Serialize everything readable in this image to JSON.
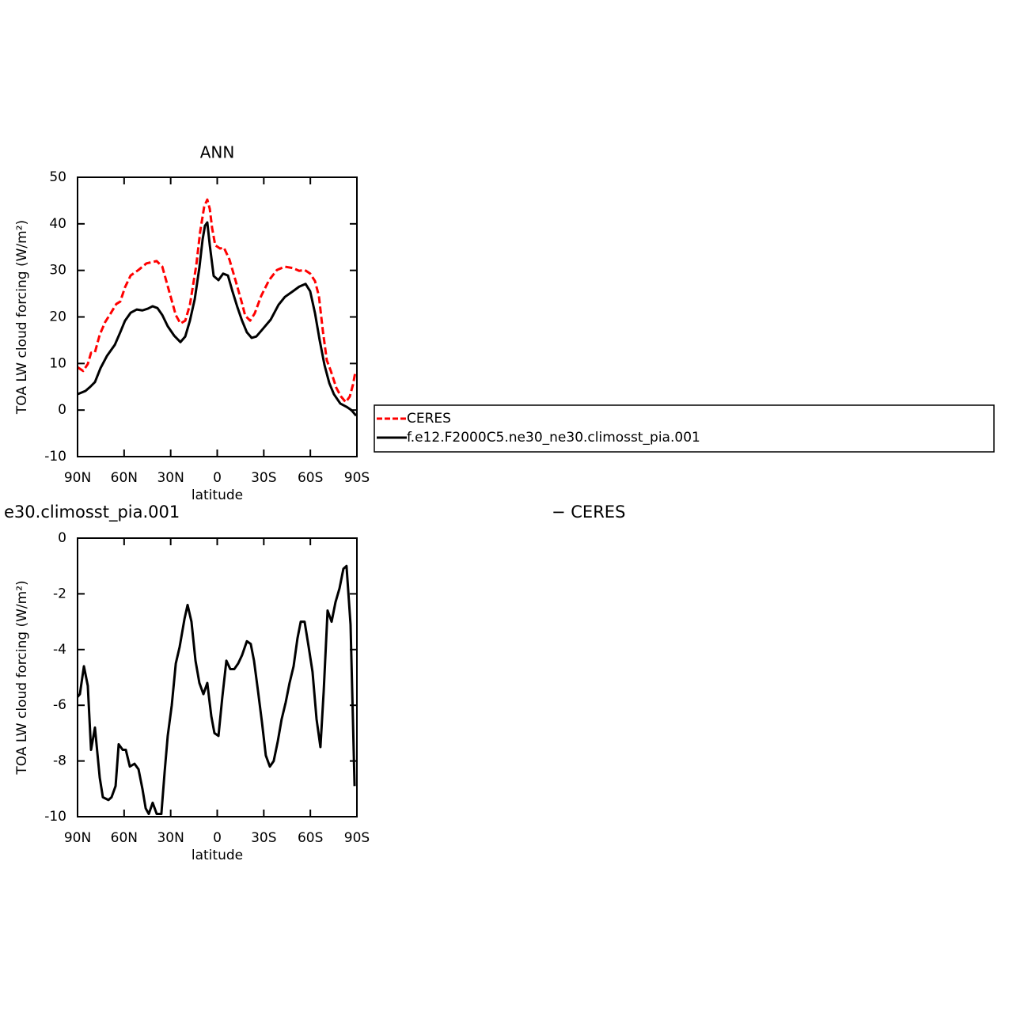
{
  "chart_data": [
    {
      "type": "line",
      "title": "ANN",
      "xlabel": "latitude",
      "ylabel": "TOA LW cloud forcing (W/m²)",
      "xlim": [
        90,
        -90
      ],
      "xticks": [
        {
          "value": 90,
          "label": "90N"
        },
        {
          "value": 60,
          "label": "60N"
        },
        {
          "value": 30,
          "label": "30N"
        },
        0,
        {
          "value": -30,
          "label": "30S"
        },
        {
          "value": -60,
          "label": "60S"
        },
        {
          "value": -90,
          "label": "90S"
        }
      ],
      "ylim": [
        -10,
        50
      ],
      "yticks": [
        -10,
        0,
        10,
        20,
        30,
        40,
        50
      ],
      "legend": "right",
      "series": [
        {
          "name": "CERES",
          "color": "#ff0000",
          "dash": true,
          "x": [
            90,
            86.4,
            83.4,
            81.3,
            78.8,
            75.7,
            72.2,
            68.6,
            65,
            62.5,
            59.4,
            55.8,
            50.7,
            45.6,
            39,
            35.4,
            30.3,
            26.7,
            23.7,
            20.6,
            17.6,
            13.5,
            11,
            8.4,
            6.4,
            4.8,
            3.3,
            1.3,
            -1.8,
            -4.3,
            -7.9,
            -11.9,
            -15.5,
            -18,
            -21.2,
            -24.2,
            -28.3,
            -33.4,
            -38.5,
            -43.6,
            -48.7,
            -52.8,
            -56.3,
            -59.9,
            -63,
            -65.5,
            -68.1,
            -70.6,
            -73.2,
            -76.7,
            -79.8,
            -82.8,
            -85.4,
            -87.5,
            -89
          ],
          "values": [
            9.2,
            8.4,
            9.9,
            12.3,
            12.4,
            16.2,
            18.9,
            20.8,
            22.8,
            23.3,
            26.4,
            28.9,
            30.1,
            31.5,
            32.0,
            30.8,
            24.7,
            20.4,
            18.6,
            19.2,
            22.6,
            31.1,
            38.3,
            43.7,
            45.2,
            43.2,
            39.1,
            35.4,
            34.7,
            34.9,
            32.3,
            27.7,
            23.5,
            20.3,
            19.2,
            20.8,
            24.5,
            27.9,
            30.1,
            30.8,
            30.5,
            29.9,
            30.1,
            29.3,
            27.7,
            24.5,
            16.9,
            10.7,
            8.4,
            4.8,
            2.9,
            1.7,
            2.9,
            5.5,
            8.2
          ]
        },
        {
          "name": "f.e12.F2000C5.ne30_ne30.climosst_pia.001",
          "color": "#000000",
          "dash": false,
          "x": [
            90,
            84.9,
            81.8,
            78.8,
            75.2,
            71.1,
            66,
            62.5,
            59.4,
            55.8,
            51.8,
            48.2,
            44.6,
            41.6,
            38.5,
            35.4,
            31.9,
            27.8,
            23.7,
            20.6,
            17.6,
            14.5,
            11.5,
            9.4,
            7.9,
            6.4,
            4.8,
            2.3,
            -0.8,
            -3.8,
            -6.9,
            -9.9,
            -13,
            -16,
            -19.1,
            -22.2,
            -25.2,
            -29.3,
            -34.4,
            -39.5,
            -43.6,
            -48.7,
            -52.8,
            -56.9,
            -59.9,
            -63,
            -66,
            -69.1,
            -72.2,
            -75.2,
            -79.3,
            -83.3,
            -86.4,
            -89.5
          ],
          "values": [
            3.4,
            4.1,
            5.0,
            6.0,
            9.0,
            11.6,
            14.0,
            16.7,
            19.2,
            20.9,
            21.6,
            21.4,
            21.8,
            22.3,
            21.9,
            20.4,
            18.0,
            16.0,
            14.6,
            15.8,
            19.2,
            23.8,
            30.6,
            36.7,
            39.6,
            40.3,
            35.4,
            28.8,
            27.9,
            29.3,
            28.9,
            25.4,
            22.1,
            19.2,
            16.7,
            15.5,
            15.8,
            17.4,
            19.4,
            22.6,
            24.3,
            25.5,
            26.5,
            27.1,
            25.5,
            20.8,
            15.0,
            9.7,
            5.8,
            3.4,
            1.4,
            0.7,
            0.0,
            -1.2
          ]
        }
      ]
    },
    {
      "type": "line",
      "title": [
        "e30.climosst_pia.001",
        "− CERES"
      ],
      "xlabel": "latitude",
      "ylabel": "TOA LW cloud forcing (W/m²)",
      "xlim": [
        90,
        -90
      ],
      "xticks": [
        {
          "value": 90,
          "label": "90N"
        },
        {
          "value": 60,
          "label": "60N"
        },
        {
          "value": 30,
          "label": "30N"
        },
        0,
        {
          "value": -30,
          "label": "30S"
        },
        {
          "value": -60,
          "label": "60S"
        },
        {
          "value": -90,
          "label": "90S"
        }
      ],
      "ylim": [
        -10,
        0
      ],
      "yticks": [
        -10,
        -8,
        -6,
        -4,
        -2,
        0
      ],
      "series": [
        {
          "color": "#000000",
          "dash": false,
          "x": [
            90,
            88.5,
            85.9,
            83.4,
            81.3,
            78.8,
            75.7,
            73.7,
            70.1,
            68.1,
            65.5,
            63.5,
            60.9,
            58.9,
            56.3,
            53.3,
            50.7,
            48.2,
            46.1,
            44.1,
            41.6,
            39,
            36,
            33.9,
            31.9,
            29.3,
            26.7,
            24.2,
            21.1,
            19.1,
            16.6,
            14,
            11.5,
            8.9,
            6.4,
            3.8,
            1.8,
            -0.8,
            -3.3,
            -5.9,
            -8.4,
            -11,
            -13.5,
            -16,
            -19.1,
            -21.6,
            -23.7,
            -26.3,
            -28.8,
            -31.3,
            -33.9,
            -36.4,
            -39,
            -41.5,
            -44.1,
            -46.6,
            -49.2,
            -51.7,
            -53.8,
            -56.3,
            -58.9,
            -61.4,
            -64,
            -66.5,
            -68.6,
            -71.1,
            -73.7,
            -76.2,
            -78.8,
            -81.3,
            -83.3,
            -85.9,
            -88.5
          ],
          "values": [
            -5.7,
            -5.6,
            -4.6,
            -5.3,
            -7.6,
            -6.8,
            -8.6,
            -9.3,
            -9.4,
            -9.3,
            -8.9,
            -7.4,
            -7.6,
            -7.6,
            -8.2,
            -8.1,
            -8.3,
            -9.0,
            -9.7,
            -9.9,
            -9.5,
            -9.9,
            -9.9,
            -8.4,
            -7.1,
            -6.0,
            -4.5,
            -3.9,
            -2.9,
            -2.4,
            -3.0,
            -4.4,
            -5.2,
            -5.6,
            -5.2,
            -6.4,
            -7.0,
            -7.1,
            -5.7,
            -4.4,
            -4.7,
            -4.7,
            -4.5,
            -4.2,
            -3.7,
            -3.8,
            -4.4,
            -5.5,
            -6.6,
            -7.8,
            -8.2,
            -8.0,
            -7.3,
            -6.5,
            -5.9,
            -5.2,
            -4.6,
            -3.6,
            -3.0,
            -3.0,
            -3.9,
            -4.8,
            -6.5,
            -7.5,
            -5.5,
            -2.6,
            -3.0,
            -2.3,
            -1.8,
            -1.1,
            -1.0,
            -3.1,
            -8.9
          ]
        }
      ]
    }
  ]
}
